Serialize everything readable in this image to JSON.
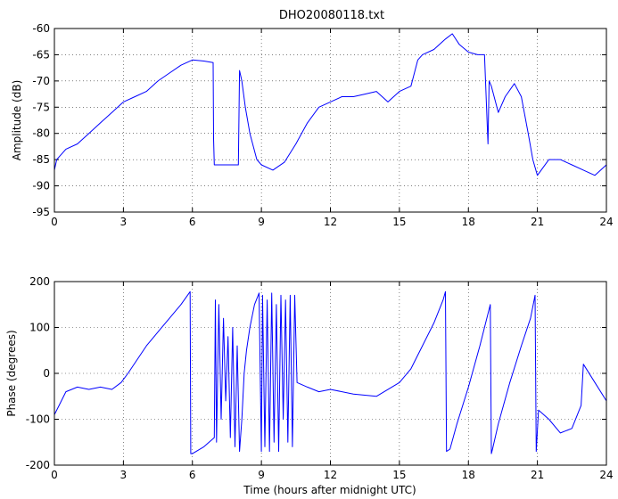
{
  "chart_data": [
    {
      "type": "line",
      "title": "DHO20080118.txt",
      "xlabel": "",
      "ylabel": "Amplitude (dB)",
      "xlim": [
        0,
        24
      ],
      "ylim": [
        -95,
        -60
      ],
      "xticks": [
        0,
        3,
        6,
        9,
        12,
        15,
        18,
        21,
        24
      ],
      "yticks": [
        -95,
        -90,
        -85,
        -80,
        -75,
        -70,
        -65,
        -60
      ],
      "grid": true,
      "color": "#0000ff",
      "series": [
        {
          "x": [
            0,
            0.1,
            0.5,
            1,
            1.5,
            2,
            2.5,
            3,
            3.5,
            4,
            4.5,
            5,
            5.5,
            6,
            6.5,
            6.9,
            6.92,
            6.95,
            7.0,
            7.1,
            7.5,
            8.0,
            8.05,
            8.15,
            8.3,
            8.5,
            8.8,
            9.0,
            9.5,
            10,
            10.5,
            11,
            11.5,
            12,
            12.5,
            13,
            13.5,
            14,
            14.5,
            15,
            15.5,
            15.8,
            16,
            16.5,
            17,
            17.3,
            17.6,
            18,
            18.4,
            18.7,
            18.85,
            18.9,
            19.0,
            19.3,
            19.6,
            20,
            20.3,
            20.6,
            20.8,
            21,
            21.5,
            22,
            22.5,
            23,
            23.5,
            24
          ],
          "y": [
            -87,
            -85,
            -83,
            -82,
            -80,
            -78,
            -76,
            -74,
            -73,
            -72,
            -70,
            -68.5,
            -67,
            -66,
            -66.2,
            -66.5,
            -81,
            -86,
            -86,
            -86,
            -86,
            -86,
            -68,
            -70,
            -75,
            -80,
            -85,
            -86,
            -87,
            -85.5,
            -82,
            -78,
            -75,
            -74,
            -73,
            -73,
            -72.5,
            -72,
            -74,
            -72,
            -71,
            -66,
            -65,
            -64,
            -62,
            -61,
            -63,
            -64.5,
            -65,
            -65,
            -82,
            -70,
            -71,
            -76,
            -73,
            -70.5,
            -73,
            -80,
            -85,
            -88,
            -85,
            -85,
            -86,
            -87,
            -88,
            -86
          ]
        }
      ]
    },
    {
      "type": "line",
      "title": "",
      "xlabel": "Time (hours after midnight UTC)",
      "ylabel": "Phase (degrees)",
      "xlim": [
        0,
        24
      ],
      "ylim": [
        -200,
        200
      ],
      "xticks": [
        0,
        3,
        6,
        9,
        12,
        15,
        18,
        21,
        24
      ],
      "yticks": [
        -200,
        -100,
        0,
        100,
        200
      ],
      "grid": true,
      "color": "#0000ff",
      "series": [
        {
          "x": [
            0,
            0.2,
            0.5,
            1,
            1.5,
            2,
            2.5,
            2.9,
            3.2,
            3.6,
            4,
            4.5,
            5,
            5.5,
            5.9,
            5.93,
            6.0,
            6.5,
            6.95,
            7.0,
            7.05,
            7.15,
            7.25,
            7.35,
            7.45,
            7.55,
            7.65,
            7.75,
            7.85,
            7.95,
            8.05,
            8.15,
            8.25,
            8.35,
            8.5,
            8.7,
            8.9,
            9.0,
            9.05,
            9.15,
            9.25,
            9.35,
            9.45,
            9.55,
            9.65,
            9.75,
            9.85,
            9.95,
            10.05,
            10.15,
            10.25,
            10.35,
            10.45,
            10.55,
            11,
            11.5,
            12,
            13,
            14,
            15,
            15.5,
            16,
            16.5,
            16.9,
            17.0,
            17.05,
            17.2,
            17.5,
            18,
            18.5,
            18.95,
            19.0,
            19.05,
            19.3,
            19.8,
            20.3,
            20.7,
            20.9,
            20.95,
            21.05,
            21.5,
            22,
            22.5,
            22.9,
            23.0,
            23.5,
            24
          ],
          "y": [
            -90,
            -70,
            -40,
            -30,
            -35,
            -30,
            -35,
            -20,
            0,
            30,
            60,
            90,
            120,
            150,
            178,
            -175,
            -175,
            -160,
            -140,
            160,
            -150,
            150,
            -100,
            120,
            -60,
            80,
            -140,
            100,
            -160,
            60,
            -170,
            -100,
            0,
            50,
            100,
            150,
            175,
            -170,
            170,
            -160,
            160,
            -170,
            175,
            -150,
            150,
            -170,
            170,
            -100,
            160,
            -150,
            170,
            -160,
            170,
            -20,
            -30,
            -40,
            -35,
            -45,
            -50,
            -20,
            10,
            60,
            110,
            160,
            178,
            -170,
            -165,
            -110,
            -30,
            60,
            150,
            -175,
            -165,
            -110,
            -20,
            60,
            120,
            170,
            -170,
            -80,
            -100,
            -130,
            -120,
            -70,
            20,
            -20,
            -60
          ]
        }
      ]
    }
  ]
}
